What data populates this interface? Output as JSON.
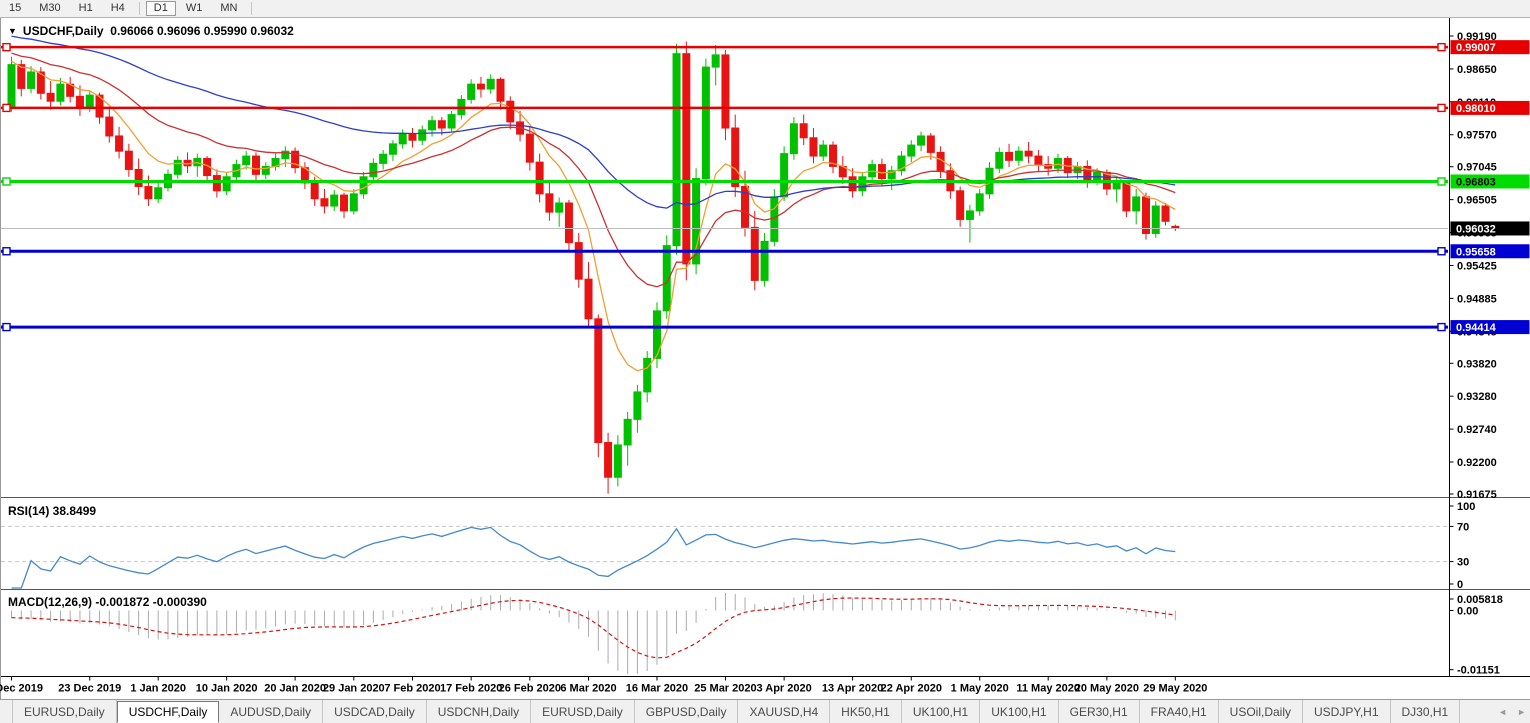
{
  "toolbar": {
    "timeframes": [
      {
        "label": "15",
        "active": false
      },
      {
        "label": "M30",
        "active": false
      },
      {
        "label": "H1",
        "active": false
      },
      {
        "label": "H4",
        "active": false
      },
      {
        "label": "D1",
        "active": true
      },
      {
        "label": "W1",
        "active": false
      },
      {
        "label": "MN",
        "active": false
      }
    ]
  },
  "legend": {
    "symbol": "USDCHF,Daily",
    "ohlc": "0.96066 0.96096 0.95990 0.96032"
  },
  "colors": {
    "up": "#00C000",
    "down": "#E81414",
    "ma_fast": "#EFA032",
    "ma_mid": "#C83232",
    "ma_slow": "#2E3FC8",
    "rsi": "#4389CE",
    "rsi_level": "#C8C8C8",
    "macd_hist": "#ABABAB",
    "macd_signal": "#D41414",
    "axis_text": "#000000",
    "separator": "#555555"
  },
  "chart_data": {
    "type": "candlestick",
    "symbol": "USDCHF",
    "timeframe": "Daily",
    "title": "USDCHF,Daily",
    "last_bar": {
      "open": 0.96066,
      "high": 0.96096,
      "low": 0.9599,
      "close": 0.96032
    },
    "price_axis_ticks": [
      "0.99190",
      "0.98650",
      "0.98110",
      "0.97570",
      "0.97045",
      "0.96505",
      "0.95965",
      "0.95425",
      "0.94885",
      "0.94345",
      "0.93820",
      "0.93280",
      "0.92740",
      "0.92200",
      "0.91675"
    ],
    "x_labels": [
      "13 Dec 2019",
      "23 Dec 2019",
      "1 Jan 2020",
      "10 Jan 2020",
      "20 Jan 2020",
      "29 Jan 2020",
      "7 Feb 2020",
      "17 Feb 2020",
      "26 Feb 2020",
      "6 Mar 2020",
      "16 Mar 2020",
      "25 Mar 2020",
      "3 Apr 2020",
      "13 Apr 2020",
      "22 Apr 2020",
      "1 May 2020",
      "11 May 2020",
      "20 May 2020",
      "29 May 2020"
    ],
    "x_label_indices": [
      0,
      8,
      15,
      22,
      29,
      35,
      41,
      47,
      53,
      59,
      66,
      73,
      79,
      86,
      92,
      99,
      106,
      112,
      119
    ],
    "h_lines": [
      {
        "name": "resistance-1",
        "price": 0.99007,
        "label": "0.99007",
        "color": "#E60000",
        "width": 2.5,
        "badge_bg": "#E60000",
        "badge_fg": "#FFFFFF",
        "handles": true
      },
      {
        "name": "resistance-2",
        "price": 0.9801,
        "label": "0.98010",
        "color": "#E60000",
        "width": 2.5,
        "badge_bg": "#E60000",
        "badge_fg": "#FFFFFF",
        "handles": true
      },
      {
        "name": "pivot-green",
        "price": 0.96803,
        "label": "0.96803",
        "color": "#00DC00",
        "width": 3,
        "badge_bg": "#00DC00",
        "badge_fg": "#000000",
        "handles": true
      },
      {
        "name": "current-price",
        "price": 0.96032,
        "label": "0.96032",
        "color": "#BDBDBD",
        "width": 1,
        "badge_bg": "#000000",
        "badge_fg": "#FFFFFF",
        "handles": false
      },
      {
        "name": "support-1",
        "price": 0.95658,
        "label": "0.95658",
        "color": "#0000D2",
        "width": 3,
        "badge_bg": "#0000D2",
        "badge_fg": "#FFFFFF",
        "handles": true
      },
      {
        "name": "support-2",
        "price": 0.94414,
        "label": "0.94414",
        "color": "#0000D2",
        "width": 3,
        "badge_bg": "#0000D2",
        "badge_fg": "#FFFFFF",
        "handles": true
      }
    ],
    "moving_averages": [
      {
        "name": "ma-fast-orange",
        "period": 8,
        "color": "#EFA032"
      },
      {
        "name": "ma-mid-red",
        "period": 21,
        "color": "#C83232"
      },
      {
        "name": "ma-slow-blue",
        "period": 55,
        "color": "#2E3FC8"
      }
    ],
    "ema_seed": {
      "length": 55,
      "start": 0.9985
    },
    "indicators": [
      {
        "name": "RSI",
        "label": "RSI(14) 38.8499",
        "period": 14,
        "value": 38.8499,
        "levels": [
          70,
          30
        ],
        "axis_ticks": [
          "100",
          "70",
          "30",
          "0"
        ]
      },
      {
        "name": "MACD",
        "label": "MACD(12,26,9) -0.001872 -0.000390",
        "params": [
          12,
          26,
          9
        ],
        "macd_value": -0.001872,
        "signal_value": -0.00039,
        "axis_ticks": [
          "0.005818",
          "0.00",
          "-0.01151"
        ]
      }
    ],
    "candles": [
      [
        0.98,
        0.9885,
        0.9795,
        0.9872
      ],
      [
        0.9872,
        0.988,
        0.982,
        0.9833
      ],
      [
        0.9833,
        0.987,
        0.9825,
        0.986
      ],
      [
        0.986,
        0.9868,
        0.9815,
        0.9825
      ],
      [
        0.9825,
        0.9845,
        0.9798,
        0.9812
      ],
      [
        0.9812,
        0.985,
        0.9805,
        0.984
      ],
      [
        0.984,
        0.9852,
        0.981,
        0.982
      ],
      [
        0.982,
        0.9838,
        0.9788,
        0.98
      ],
      [
        0.98,
        0.983,
        0.9794,
        0.9822
      ],
      [
        0.9822,
        0.9826,
        0.9775,
        0.9786
      ],
      [
        0.9786,
        0.98,
        0.9744,
        0.9755
      ],
      [
        0.9755,
        0.977,
        0.9718,
        0.973
      ],
      [
        0.973,
        0.9742,
        0.9688,
        0.97
      ],
      [
        0.97,
        0.9718,
        0.9658,
        0.9672
      ],
      [
        0.9672,
        0.969,
        0.964,
        0.9652
      ],
      [
        0.9652,
        0.968,
        0.9645,
        0.967
      ],
      [
        0.967,
        0.97,
        0.9664,
        0.9692
      ],
      [
        0.9692,
        0.9722,
        0.9685,
        0.9715
      ],
      [
        0.9715,
        0.9728,
        0.9694,
        0.9706
      ],
      [
        0.9706,
        0.9726,
        0.9688,
        0.9718
      ],
      [
        0.9718,
        0.9722,
        0.9678,
        0.969
      ],
      [
        0.969,
        0.97,
        0.9654,
        0.9665
      ],
      [
        0.9665,
        0.9696,
        0.9658,
        0.9688
      ],
      [
        0.9688,
        0.9716,
        0.968,
        0.9708
      ],
      [
        0.9708,
        0.973,
        0.97,
        0.9722
      ],
      [
        0.9722,
        0.9728,
        0.9682,
        0.9692
      ],
      [
        0.9692,
        0.9712,
        0.9684,
        0.9705
      ],
      [
        0.9705,
        0.9726,
        0.9698,
        0.9718
      ],
      [
        0.9718,
        0.9738,
        0.9704,
        0.973
      ],
      [
        0.973,
        0.9736,
        0.9694,
        0.9703
      ],
      [
        0.9703,
        0.9712,
        0.9668,
        0.9678
      ],
      [
        0.9678,
        0.9688,
        0.964,
        0.9652
      ],
      [
        0.9652,
        0.9668,
        0.9628,
        0.964
      ],
      [
        0.964,
        0.9666,
        0.9632,
        0.9658
      ],
      [
        0.9658,
        0.9662,
        0.962,
        0.9632
      ],
      [
        0.9632,
        0.9668,
        0.9626,
        0.966
      ],
      [
        0.966,
        0.9696,
        0.9652,
        0.9688
      ],
      [
        0.9688,
        0.9718,
        0.968,
        0.971
      ],
      [
        0.971,
        0.9732,
        0.97,
        0.9725
      ],
      [
        0.9725,
        0.9748,
        0.9714,
        0.9742
      ],
      [
        0.9742,
        0.9766,
        0.9734,
        0.9758
      ],
      [
        0.9758,
        0.9768,
        0.9736,
        0.9748
      ],
      [
        0.9748,
        0.9772,
        0.974,
        0.9765
      ],
      [
        0.9765,
        0.9788,
        0.9754,
        0.978
      ],
      [
        0.978,
        0.9786,
        0.9756,
        0.9768
      ],
      [
        0.9768,
        0.9796,
        0.9762,
        0.979
      ],
      [
        0.979,
        0.9822,
        0.9782,
        0.9815
      ],
      [
        0.9815,
        0.9848,
        0.9808,
        0.984
      ],
      [
        0.984,
        0.9852,
        0.9818,
        0.9832
      ],
      [
        0.9832,
        0.9856,
        0.9824,
        0.9848
      ],
      [
        0.9848,
        0.9851,
        0.9798,
        0.9812
      ],
      [
        0.9812,
        0.982,
        0.9766,
        0.9778
      ],
      [
        0.9778,
        0.9796,
        0.9746,
        0.9758
      ],
      [
        0.9758,
        0.977,
        0.9698,
        0.9712
      ],
      [
        0.9712,
        0.9726,
        0.9646,
        0.966
      ],
      [
        0.966,
        0.9678,
        0.9616,
        0.963
      ],
      [
        0.963,
        0.9654,
        0.9606,
        0.9645
      ],
      [
        0.9645,
        0.965,
        0.9566,
        0.958
      ],
      [
        0.958,
        0.9596,
        0.9506,
        0.952
      ],
      [
        0.952,
        0.9548,
        0.944,
        0.9455
      ],
      [
        0.9455,
        0.9462,
        0.9228,
        0.9252
      ],
      [
        0.9252,
        0.9268,
        0.9168,
        0.9195
      ],
      [
        0.9195,
        0.9264,
        0.918,
        0.9248
      ],
      [
        0.9248,
        0.9302,
        0.9214,
        0.929
      ],
      [
        0.929,
        0.9346,
        0.9268,
        0.9335
      ],
      [
        0.9335,
        0.9402,
        0.9318,
        0.939
      ],
      [
        0.939,
        0.9482,
        0.9374,
        0.9468
      ],
      [
        0.9468,
        0.9592,
        0.9455,
        0.9575
      ],
      [
        0.9575,
        0.9906,
        0.956,
        0.989
      ],
      [
        0.989,
        0.991,
        0.9518,
        0.9545
      ],
      [
        0.9545,
        0.9702,
        0.9528,
        0.9685
      ],
      [
        0.9685,
        0.9882,
        0.9674,
        0.9868
      ],
      [
        0.9868,
        0.9904,
        0.9838,
        0.9888
      ],
      [
        0.9888,
        0.9896,
        0.9748,
        0.9768
      ],
      [
        0.9768,
        0.979,
        0.9655,
        0.9672
      ],
      [
        0.9672,
        0.9698,
        0.959,
        0.9605
      ],
      [
        0.9605,
        0.9632,
        0.9502,
        0.9518
      ],
      [
        0.9518,
        0.9596,
        0.9508,
        0.9582
      ],
      [
        0.9582,
        0.9668,
        0.9574,
        0.9655
      ],
      [
        0.9655,
        0.9738,
        0.9648,
        0.9726
      ],
      [
        0.9726,
        0.9786,
        0.9716,
        0.9775
      ],
      [
        0.9775,
        0.979,
        0.974,
        0.9752
      ],
      [
        0.9752,
        0.9768,
        0.971,
        0.9722
      ],
      [
        0.9722,
        0.9748,
        0.9714,
        0.974
      ],
      [
        0.974,
        0.9746,
        0.9694,
        0.9705
      ],
      [
        0.9705,
        0.9722,
        0.9676,
        0.9688
      ],
      [
        0.9688,
        0.9702,
        0.9654,
        0.9665
      ],
      [
        0.9665,
        0.9696,
        0.9656,
        0.9688
      ],
      [
        0.9688,
        0.9716,
        0.9678,
        0.9708
      ],
      [
        0.9708,
        0.9718,
        0.9674,
        0.9685
      ],
      [
        0.9685,
        0.9706,
        0.9666,
        0.9698
      ],
      [
        0.9698,
        0.973,
        0.969,
        0.9722
      ],
      [
        0.9722,
        0.9748,
        0.9712,
        0.974
      ],
      [
        0.974,
        0.9762,
        0.973,
        0.9755
      ],
      [
        0.9755,
        0.976,
        0.9716,
        0.9728
      ],
      [
        0.9728,
        0.9738,
        0.9686,
        0.9698
      ],
      [
        0.9698,
        0.971,
        0.9652,
        0.9665
      ],
      [
        0.9665,
        0.9672,
        0.9606,
        0.9618
      ],
      [
        0.9618,
        0.9642,
        0.958,
        0.9632
      ],
      [
        0.9632,
        0.9668,
        0.9624,
        0.966
      ],
      [
        0.966,
        0.9712,
        0.9652,
        0.9702
      ],
      [
        0.9702,
        0.9736,
        0.9694,
        0.9728
      ],
      [
        0.9728,
        0.9742,
        0.9704,
        0.9715
      ],
      [
        0.9715,
        0.9738,
        0.9706,
        0.973
      ],
      [
        0.973,
        0.9745,
        0.971,
        0.9722
      ],
      [
        0.9722,
        0.9732,
        0.9696,
        0.9708
      ],
      [
        0.9708,
        0.9722,
        0.969,
        0.9702
      ],
      [
        0.9702,
        0.9726,
        0.9694,
        0.9718
      ],
      [
        0.9718,
        0.9722,
        0.9686,
        0.9695
      ],
      [
        0.9695,
        0.9712,
        0.9684,
        0.9705
      ],
      [
        0.9705,
        0.9715,
        0.967,
        0.9682
      ],
      [
        0.9682,
        0.9702,
        0.9674,
        0.9695
      ],
      [
        0.9695,
        0.97,
        0.9658,
        0.9668
      ],
      [
        0.9668,
        0.9686,
        0.9646,
        0.9678
      ],
      [
        0.9678,
        0.9682,
        0.9622,
        0.9632
      ],
      [
        0.9632,
        0.9668,
        0.961,
        0.9655
      ],
      [
        0.9655,
        0.9662,
        0.9585,
        0.9595
      ],
      [
        0.9595,
        0.9648,
        0.9588,
        0.964
      ],
      [
        0.964,
        0.9645,
        0.9608,
        0.9615
      ],
      [
        0.96066,
        0.96096,
        0.9599,
        0.96032
      ]
    ]
  },
  "tabs": {
    "items": [
      {
        "label": "EURUSD,Daily",
        "active": false
      },
      {
        "label": "USDCHF,Daily",
        "active": true
      },
      {
        "label": "AUDUSD,Daily",
        "active": false
      },
      {
        "label": "USDCAD,Daily",
        "active": false
      },
      {
        "label": "USDCNH,Daily",
        "active": false
      },
      {
        "label": "EURUSD,Daily",
        "active": false
      },
      {
        "label": "GBPUSD,Daily",
        "active": false
      },
      {
        "label": "XAUUSD,H4",
        "active": false
      },
      {
        "label": "HK50,H1",
        "active": false
      },
      {
        "label": "UK100,H1",
        "active": false
      },
      {
        "label": "UK100,H1",
        "active": false
      },
      {
        "label": "GER30,H1",
        "active": false
      },
      {
        "label": "FRA40,H1",
        "active": false
      },
      {
        "label": "USOil,Daily",
        "active": false
      },
      {
        "label": "USDJPY,H1",
        "active": false
      },
      {
        "label": "DJ30,H1",
        "active": false
      }
    ],
    "scroll_left_icon": "◄",
    "scroll_right_icon": "►"
  }
}
